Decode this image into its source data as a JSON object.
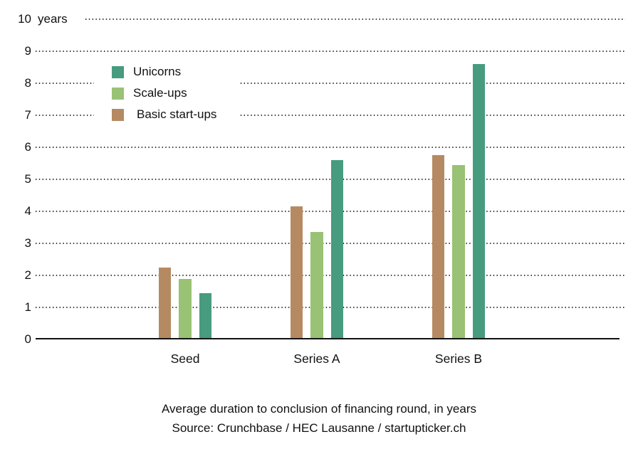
{
  "chart_data": {
    "type": "bar",
    "caption_line1": "Average duration to conclusion of financing round, in years",
    "caption_line2": "Source: Crunchbase / HEC Lausanne / startupticker.ch",
    "unit_label": "years",
    "categories": [
      "Seed",
      "Series A",
      "Series B"
    ],
    "series": [
      {
        "name": "Unicorns",
        "color": "#479b7e",
        "values": [
          1.45,
          5.6,
          8.6
        ]
      },
      {
        "name": "Scale-ups",
        "color": "#99c274",
        "values": [
          1.9,
          3.35,
          5.45
        ]
      },
      {
        "name": "Basic start-ups",
        "color": "#b58a62",
        "values": [
          2.25,
          4.15,
          5.75
        ]
      }
    ],
    "bar_draw_order": [
      "Basic start-ups",
      "Scale-ups",
      "Unicorns"
    ],
    "y_ticks": [
      0,
      1,
      2,
      3,
      4,
      5,
      6,
      7,
      8,
      9,
      10
    ],
    "ylim": [
      0,
      10
    ],
    "grid": "horizontal-dotted",
    "legend_position": "inside-top-left",
    "text_color": "#111111",
    "gridline_color": "#3a3a3a"
  }
}
